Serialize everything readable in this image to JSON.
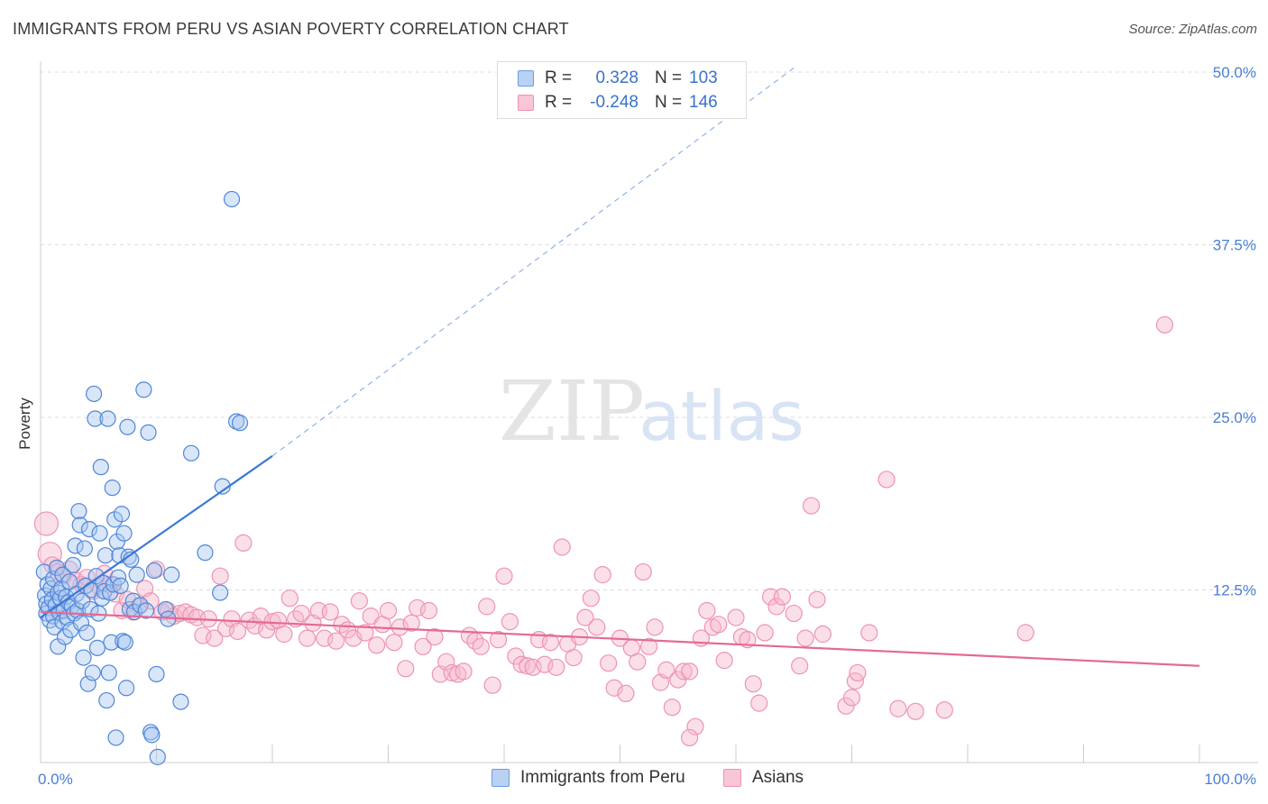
{
  "header": {
    "title": "IMMIGRANTS FROM PERU VS ASIAN POVERTY CORRELATION CHART",
    "source": "Source: ZipAtlas.com"
  },
  "watermark": {
    "zip": "ZIP",
    "atlas": "atlas"
  },
  "legend": {
    "rows": [
      {
        "r_label": "R =",
        "r_value": "0.328",
        "n_label": "N =",
        "n_value": "103"
      },
      {
        "r_label": "R =",
        "r_value": "-0.248",
        "n_label": "N =",
        "n_value": "146"
      }
    ]
  },
  "bottom_legend": [
    "Immigrants from Peru",
    "Asians"
  ],
  "colors": {
    "blue": "#3b78d8",
    "blue_fill": "#a9c7ef",
    "blue_stroke": "#6a9be0",
    "pink": "#e46a93",
    "pink_fill": "#f6b7cb",
    "pink_stroke": "#ee93b2",
    "grid": "#dcdcdc",
    "tick_text": "#4a7fd4"
  },
  "chart_data": {
    "type": "scatter",
    "title": "IMMIGRANTS FROM PERU VS ASIAN POVERTY CORRELATION CHART",
    "xlabel": "",
    "ylabel": "Poverty",
    "xlim": [
      0,
      100
    ],
    "ylim": [
      0,
      50
    ],
    "x_tick_labels": [
      "0.0%",
      "100.0%"
    ],
    "y_ticks": [
      12.5,
      25.0,
      37.5,
      50.0
    ],
    "y_tick_labels": [
      "12.5%",
      "25.0%",
      "37.5%",
      "50.0%"
    ],
    "grid": true,
    "series": [
      {
        "name": "Immigrants from Peru",
        "color": "#3b78d8",
        "trend": {
          "x": [
            0,
            20
          ],
          "y": [
            10.5,
            22.2
          ],
          "dashed_to": [
            65,
            50.3
          ]
        },
        "points": [
          [
            0.3,
            13.8
          ],
          [
            0.4,
            12.1
          ],
          [
            0.5,
            11.5
          ],
          [
            0.5,
            10.8
          ],
          [
            0.6,
            12.9
          ],
          [
            0.7,
            11.2
          ],
          [
            0.8,
            10.3
          ],
          [
            0.9,
            12.6
          ],
          [
            1.0,
            11.8
          ],
          [
            1.1,
            13.3
          ],
          [
            1.1,
            10.6
          ],
          [
            1.2,
            9.8
          ],
          [
            1.3,
            11.4
          ],
          [
            1.4,
            14.1
          ],
          [
            1.5,
            12.3
          ],
          [
            1.5,
            8.4
          ],
          [
            1.6,
            10.9
          ],
          [
            1.7,
            11.9
          ],
          [
            1.8,
            12.6
          ],
          [
            1.9,
            10.2
          ],
          [
            1.9,
            13.6
          ],
          [
            2.0,
            11.0
          ],
          [
            2.1,
            9.1
          ],
          [
            2.2,
            12.0
          ],
          [
            2.3,
            10.5
          ],
          [
            2.4,
            11.6
          ],
          [
            2.5,
            13.1
          ],
          [
            2.6,
            9.6
          ],
          [
            2.7,
            11.3
          ],
          [
            2.8,
            14.3
          ],
          [
            2.9,
            10.8
          ],
          [
            3.0,
            15.7
          ],
          [
            3.1,
            12.2
          ],
          [
            3.2,
            11.0
          ],
          [
            3.3,
            18.2
          ],
          [
            3.4,
            17.2
          ],
          [
            3.5,
            10.1
          ],
          [
            3.6,
            11.7
          ],
          [
            3.7,
            7.6
          ],
          [
            3.8,
            15.5
          ],
          [
            3.9,
            12.8
          ],
          [
            4.0,
            9.4
          ],
          [
            4.1,
            5.7
          ],
          [
            4.2,
            16.9
          ],
          [
            4.3,
            11.1
          ],
          [
            4.4,
            12.5
          ],
          [
            4.5,
            6.5
          ],
          [
            4.6,
            26.7
          ],
          [
            4.7,
            24.9
          ],
          [
            4.8,
            13.5
          ],
          [
            4.9,
            8.3
          ],
          [
            5.0,
            10.8
          ],
          [
            5.1,
            16.6
          ],
          [
            5.2,
            21.4
          ],
          [
            5.3,
            11.9
          ],
          [
            5.4,
            13.0
          ],
          [
            5.5,
            12.4
          ],
          [
            5.6,
            15.0
          ],
          [
            5.7,
            4.5
          ],
          [
            5.8,
            24.9
          ],
          [
            5.9,
            6.5
          ],
          [
            6.0,
            12.3
          ],
          [
            6.1,
            8.7
          ],
          [
            6.2,
            19.9
          ],
          [
            6.3,
            12.9
          ],
          [
            6.4,
            17.6
          ],
          [
            6.5,
            1.8
          ],
          [
            6.6,
            16.0
          ],
          [
            6.7,
            13.4
          ],
          [
            6.8,
            15.0
          ],
          [
            6.9,
            12.8
          ],
          [
            7.0,
            18.0
          ],
          [
            7.1,
            8.8
          ],
          [
            7.2,
            16.6
          ],
          [
            7.3,
            8.7
          ],
          [
            7.4,
            5.4
          ],
          [
            7.5,
            24.3
          ],
          [
            7.6,
            14.9
          ],
          [
            7.7,
            11.1
          ],
          [
            7.8,
            14.7
          ],
          [
            8.0,
            11.7
          ],
          [
            8.1,
            10.9
          ],
          [
            8.3,
            13.6
          ],
          [
            8.6,
            11.4
          ],
          [
            8.9,
            27.0
          ],
          [
            9.1,
            11.0
          ],
          [
            9.3,
            23.9
          ],
          [
            9.5,
            2.2
          ],
          [
            9.6,
            2.0
          ],
          [
            9.8,
            13.9
          ],
          [
            10.0,
            6.4
          ],
          [
            10.1,
            0.4
          ],
          [
            10.8,
            11.1
          ],
          [
            11.0,
            10.4
          ],
          [
            11.3,
            13.6
          ],
          [
            12.1,
            4.4
          ],
          [
            13.0,
            22.4
          ],
          [
            14.2,
            15.2
          ],
          [
            15.5,
            12.3
          ],
          [
            15.7,
            20.0
          ],
          [
            16.9,
            24.7
          ],
          [
            17.2,
            24.6
          ],
          [
            16.5,
            40.8
          ]
        ]
      },
      {
        "name": "Asians",
        "color": "#e46a93",
        "trend": {
          "x": [
            0,
            100
          ],
          "y": [
            10.9,
            7.0
          ]
        },
        "points": [
          [
            0.5,
            17.3
          ],
          [
            0.8,
            15.1
          ],
          [
            1.0,
            14.3
          ],
          [
            1.5,
            13.8
          ],
          [
            2.0,
            13.5
          ],
          [
            2.5,
            14.0
          ],
          [
            3.0,
            13.2
          ],
          [
            3.5,
            12.9
          ],
          [
            4.0,
            13.4
          ],
          [
            4.5,
            12.4
          ],
          [
            5.0,
            12.8
          ],
          [
            5.5,
            13.7
          ],
          [
            6.0,
            12.9
          ],
          [
            6.5,
            12.2
          ],
          [
            7.0,
            11.0
          ],
          [
            7.5,
            11.8
          ],
          [
            8.0,
            10.9
          ],
          [
            8.5,
            11.3
          ],
          [
            9.0,
            12.6
          ],
          [
            9.5,
            11.7
          ],
          [
            10.0,
            14.0
          ],
          [
            10.5,
            10.9
          ],
          [
            11.0,
            11.0
          ],
          [
            11.5,
            10.6
          ],
          [
            12.0,
            10.8
          ],
          [
            12.5,
            10.9
          ],
          [
            13.0,
            10.7
          ],
          [
            13.5,
            10.5
          ],
          [
            14.0,
            9.2
          ],
          [
            14.5,
            10.4
          ],
          [
            15.0,
            9.0
          ],
          [
            15.5,
            13.5
          ],
          [
            16.0,
            9.7
          ],
          [
            16.5,
            10.4
          ],
          [
            17.0,
            9.5
          ],
          [
            17.5,
            15.9
          ],
          [
            18.0,
            10.3
          ],
          [
            18.5,
            9.9
          ],
          [
            19.0,
            10.6
          ],
          [
            19.5,
            9.6
          ],
          [
            20.0,
            10.2
          ],
          [
            20.5,
            10.3
          ],
          [
            21.0,
            9.3
          ],
          [
            21.5,
            11.9
          ],
          [
            22.0,
            10.4
          ],
          [
            22.5,
            10.8
          ],
          [
            23.0,
            9.0
          ],
          [
            23.5,
            10.1
          ],
          [
            24.0,
            11.0
          ],
          [
            24.5,
            9.0
          ],
          [
            25.0,
            10.9
          ],
          [
            25.5,
            8.8
          ],
          [
            26.0,
            10.0
          ],
          [
            26.5,
            9.6
          ],
          [
            27.0,
            9.0
          ],
          [
            27.5,
            11.7
          ],
          [
            28.0,
            9.4
          ],
          [
            28.5,
            10.6
          ],
          [
            29.0,
            8.5
          ],
          [
            29.5,
            10.0
          ],
          [
            30.0,
            11.0
          ],
          [
            30.5,
            8.7
          ],
          [
            31.0,
            9.8
          ],
          [
            31.5,
            6.8
          ],
          [
            32.0,
            10.1
          ],
          [
            32.5,
            11.2
          ],
          [
            33.0,
            8.4
          ],
          [
            33.5,
            11.0
          ],
          [
            34.0,
            9.1
          ],
          [
            34.5,
            6.4
          ],
          [
            35.0,
            7.3
          ],
          [
            35.5,
            6.5
          ],
          [
            36.0,
            6.4
          ],
          [
            36.5,
            6.6
          ],
          [
            37.0,
            9.2
          ],
          [
            37.5,
            8.8
          ],
          [
            38.0,
            8.4
          ],
          [
            38.5,
            11.3
          ],
          [
            39.0,
            5.6
          ],
          [
            39.5,
            8.9
          ],
          [
            40.0,
            13.5
          ],
          [
            40.5,
            10.2
          ],
          [
            41.0,
            7.7
          ],
          [
            41.5,
            7.1
          ],
          [
            42.0,
            7.0
          ],
          [
            42.5,
            6.9
          ],
          [
            43.0,
            8.9
          ],
          [
            43.5,
            7.1
          ],
          [
            44.0,
            8.7
          ],
          [
            44.5,
            6.9
          ],
          [
            45.0,
            15.6
          ],
          [
            45.5,
            8.6
          ],
          [
            46.0,
            7.6
          ],
          [
            46.5,
            9.1
          ],
          [
            47.0,
            10.5
          ],
          [
            47.5,
            11.9
          ],
          [
            48.0,
            9.8
          ],
          [
            48.5,
            13.6
          ],
          [
            49.0,
            7.2
          ],
          [
            49.5,
            5.4
          ],
          [
            50.0,
            9.0
          ],
          [
            50.5,
            5.0
          ],
          [
            51.0,
            8.3
          ],
          [
            51.5,
            7.3
          ],
          [
            52.0,
            13.8
          ],
          [
            52.5,
            8.4
          ],
          [
            53.0,
            9.8
          ],
          [
            53.5,
            5.8
          ],
          [
            54.0,
            6.7
          ],
          [
            54.5,
            4.0
          ],
          [
            55.0,
            6.0
          ],
          [
            55.5,
            6.6
          ],
          [
            56.0,
            6.6
          ],
          [
            56.5,
            2.6
          ],
          [
            56.0,
            1.8
          ],
          [
            57.0,
            9.0
          ],
          [
            57.5,
            11.0
          ],
          [
            58.0,
            9.8
          ],
          [
            58.5,
            10.0
          ],
          [
            59.0,
            7.4
          ],
          [
            60.0,
            10.5
          ],
          [
            60.5,
            9.1
          ],
          [
            61.0,
            8.9
          ],
          [
            61.5,
            5.7
          ],
          [
            62.0,
            4.3
          ],
          [
            62.5,
            9.4
          ],
          [
            63.0,
            12.0
          ],
          [
            63.5,
            11.3
          ],
          [
            64.0,
            12.0
          ],
          [
            65.0,
            10.8
          ],
          [
            65.5,
            7.0
          ],
          [
            66.0,
            9.0
          ],
          [
            66.5,
            18.6
          ],
          [
            67.0,
            11.8
          ],
          [
            67.5,
            9.3
          ],
          [
            69.5,
            4.1
          ],
          [
            70.0,
            4.7
          ],
          [
            70.3,
            5.9
          ],
          [
            70.5,
            6.5
          ],
          [
            71.5,
            9.4
          ],
          [
            73.0,
            20.5
          ],
          [
            74.0,
            3.9
          ],
          [
            75.5,
            3.7
          ],
          [
            78.0,
            3.8
          ],
          [
            85.0,
            9.4
          ],
          [
            97.0,
            31.7
          ]
        ]
      }
    ]
  }
}
